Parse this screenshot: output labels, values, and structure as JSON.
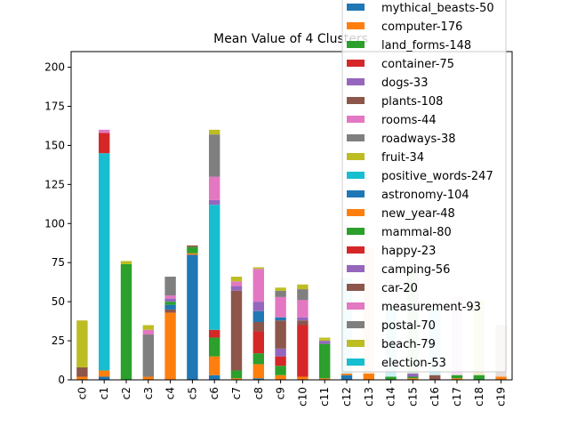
{
  "chart_data": {
    "type": "bar",
    "stacked": true,
    "title": "Mean Value of 4 Clusters",
    "xlabel": "",
    "ylabel": "",
    "ylim": [
      0,
      210
    ],
    "yticks": [
      0,
      25,
      50,
      75,
      100,
      125,
      150,
      175,
      200
    ],
    "grid": false,
    "legend_position": "top-right",
    "categories": [
      "c0",
      "c1",
      "c2",
      "c3",
      "c4",
      "c5",
      "c6",
      "c7",
      "c8",
      "c9",
      "c10",
      "c11",
      "c12",
      "c13",
      "c14",
      "c15",
      "c16",
      "c17",
      "c18",
      "c19"
    ],
    "series": [
      {
        "name": "mythical_beasts-50",
        "color": "#1f77b4",
        "values": [
          0,
          2,
          0,
          0,
          0,
          80,
          3,
          0,
          1,
          0,
          0,
          0,
          3,
          0,
          0,
          0,
          0,
          0,
          0,
          0
        ]
      },
      {
        "name": "computer-176",
        "color": "#ff7f0e",
        "values": [
          2,
          4,
          0,
          2,
          43,
          1,
          12,
          1,
          9,
          3,
          2,
          1,
          1,
          4,
          0,
          1,
          0,
          1,
          0,
          2
        ]
      },
      {
        "name": "land_forms-148",
        "color": "#2ca02c",
        "values": [
          0,
          0,
          72,
          0,
          0,
          4,
          12,
          5,
          7,
          6,
          0,
          22,
          0,
          0,
          2,
          1,
          0,
          2,
          3,
          0
        ]
      },
      {
        "name": "container-75",
        "color": "#d62728",
        "values": [
          0,
          0,
          0,
          0,
          0,
          0,
          5,
          0,
          14,
          6,
          33,
          0,
          0,
          0,
          0,
          0,
          0,
          0,
          0,
          0
        ]
      },
      {
        "name": "dogs-33",
        "color": "#9467bd",
        "values": [
          0,
          0,
          0,
          0,
          0,
          0,
          0,
          0,
          0,
          5,
          0,
          2,
          0,
          0,
          0,
          2,
          0,
          0,
          0,
          0
        ]
      },
      {
        "name": "plants-108",
        "color": "#8c564b",
        "values": [
          6,
          0,
          0,
          0,
          2,
          1,
          0,
          51,
          6,
          18,
          3,
          0,
          0,
          0,
          0,
          0,
          3,
          0,
          0,
          0
        ]
      },
      {
        "name": "rooms-44",
        "color": "#e377c2",
        "values": [
          0,
          0,
          0,
          0,
          0,
          0,
          0,
          0,
          0,
          0,
          0,
          0,
          0,
          0,
          0,
          0,
          0,
          0,
          0,
          0
        ]
      },
      {
        "name": "roadways-38",
        "color": "#7f7f7f",
        "values": [
          0,
          0,
          0,
          27,
          0,
          0,
          0,
          0,
          0,
          0,
          0,
          0,
          0,
          0,
          0,
          0,
          0,
          0,
          0,
          0
        ]
      },
      {
        "name": "fruit-34",
        "color": "#bcbd22",
        "values": [
          27,
          0,
          0,
          0,
          0,
          0,
          0,
          0,
          0,
          0,
          0,
          1,
          0,
          0,
          0,
          0,
          0,
          0,
          0,
          0
        ]
      },
      {
        "name": "positive_words-247",
        "color": "#17becf",
        "values": [
          0,
          139,
          0,
          0,
          0,
          0,
          80,
          0,
          0,
          0,
          0,
          0,
          0,
          0,
          0,
          0,
          0,
          0,
          0,
          0
        ]
      },
      {
        "name": "astronomy-104",
        "color": "#1f77b4",
        "values": [
          0,
          0,
          0,
          0,
          3,
          0,
          0,
          0,
          7,
          2,
          0,
          0,
          0,
          0,
          0,
          0,
          0,
          0,
          0,
          0
        ]
      },
      {
        "name": "new_year-48",
        "color": "#ff7f0e",
        "values": [
          0,
          0,
          0,
          0,
          0,
          0,
          0,
          0,
          0,
          0,
          0,
          0,
          0,
          0,
          0,
          0,
          0,
          0,
          0,
          0
        ]
      },
      {
        "name": "mammal-80",
        "color": "#2ca02c",
        "values": [
          0,
          0,
          2,
          0,
          2,
          0,
          0,
          0,
          0,
          0,
          0,
          0,
          0,
          0,
          0,
          0,
          0,
          0,
          0,
          0
        ]
      },
      {
        "name": "happy-23",
        "color": "#d62728",
        "values": [
          0,
          13,
          0,
          0,
          0,
          0,
          0,
          0,
          0,
          0,
          0,
          0,
          0,
          0,
          0,
          0,
          0,
          0,
          0,
          0
        ]
      },
      {
        "name": "camping-56",
        "color": "#9467bd",
        "values": [
          0,
          0,
          0,
          0,
          2,
          0,
          3,
          3,
          6,
          0,
          2,
          0,
          0,
          0,
          0,
          0,
          0,
          0,
          0,
          0
        ]
      },
      {
        "name": "car-20",
        "color": "#8c564b",
        "values": [
          0,
          0,
          0,
          0,
          0,
          0,
          0,
          0,
          0,
          0,
          0,
          0,
          0,
          0,
          0,
          0,
          0,
          0,
          0,
          0
        ]
      },
      {
        "name": "measurement-93",
        "color": "#e377c2",
        "values": [
          0,
          2,
          0,
          3,
          2,
          0,
          15,
          3,
          21,
          13,
          11,
          0,
          0,
          0,
          0,
          0,
          0,
          0,
          0,
          0
        ]
      },
      {
        "name": "postal-70",
        "color": "#7f7f7f",
        "values": [
          0,
          0,
          0,
          0,
          12,
          0,
          27,
          0,
          0,
          4,
          7,
          0,
          0,
          0,
          0,
          0,
          0,
          0,
          0,
          0
        ]
      },
      {
        "name": "beach-79",
        "color": "#bcbd22",
        "values": [
          3,
          0,
          2,
          3,
          0,
          0,
          3,
          3,
          1,
          2,
          3,
          1,
          0,
          0,
          0,
          0,
          0,
          0,
          0,
          0
        ]
      },
      {
        "name": "election-53",
        "color": "#17becf",
        "values": [
          0,
          0,
          0,
          0,
          0,
          0,
          0,
          0,
          0,
          0,
          0,
          0,
          0,
          0,
          0,
          0,
          0,
          0,
          0,
          0
        ]
      }
    ],
    "faded_overlay": [
      {
        "category": "c12",
        "color": "#17becf",
        "base": 3,
        "height": 62
      },
      {
        "category": "c13",
        "color": "#ff7f0e",
        "base": 4,
        "height": 80
      },
      {
        "category": "c14",
        "color": "#17becf",
        "base": 2,
        "height": 45
      },
      {
        "category": "c15",
        "color": "#2ca02c",
        "base": 4,
        "height": 68
      },
      {
        "category": "c16",
        "color": "#17becf",
        "base": 3,
        "height": 42
      },
      {
        "category": "c17",
        "color": "#e377c2",
        "base": 3,
        "height": 50
      },
      {
        "category": "c18",
        "color": "#bcbd22",
        "base": 3,
        "height": 48
      },
      {
        "category": "c19",
        "color": "#8c564b",
        "base": 2,
        "height": 33
      }
    ]
  }
}
